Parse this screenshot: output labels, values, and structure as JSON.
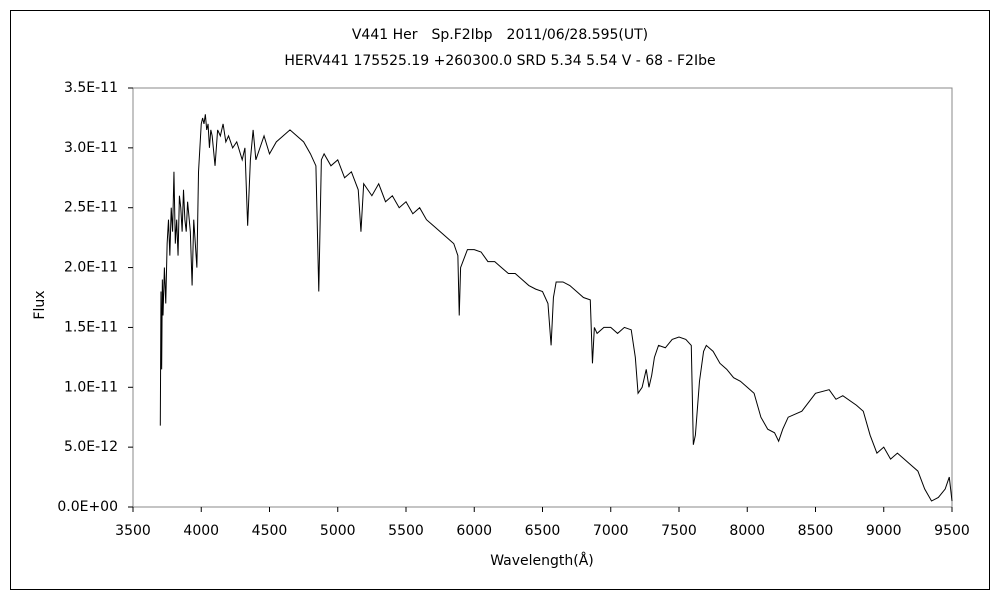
{
  "chart_data": {
    "type": "line",
    "title": "V441 Her　Sp.F2Ibp　2011/06/28.595(UT)",
    "subtitle": "HERV441 175525.19 +260300.0 SRD 5.34 5.54 V - 68 - F2Ibe",
    "x_label": "Wavelength(Å)",
    "y_label": "Flux",
    "xlim": [
      3500,
      9500
    ],
    "xticks": [
      3500,
      4000,
      4500,
      5000,
      5500,
      6000,
      6500,
      7000,
      7500,
      8000,
      8500,
      9000,
      9500
    ],
    "ylim": [
      0,
      3.5e-11
    ],
    "yticks": [
      {
        "value": 0,
        "label": "0.0E+00"
      },
      {
        "value": 5e-12,
        "label": "5.0E-12"
      },
      {
        "value": 1e-11,
        "label": "1.0E-11"
      },
      {
        "value": 1.5e-11,
        "label": "1.5E-11"
      },
      {
        "value": 2e-11,
        "label": "2.0E-11"
      },
      {
        "value": 2.5e-11,
        "label": "2.5E-11"
      },
      {
        "value": 3e-11,
        "label": "3.0E-11"
      },
      {
        "value": 3.5e-11,
        "label": "3.5E-11"
      }
    ],
    "grid": false,
    "x": [
      3700,
      3705,
      3710,
      3715,
      3720,
      3730,
      3740,
      3750,
      3760,
      3770,
      3780,
      3790,
      3800,
      3810,
      3820,
      3830,
      3840,
      3850,
      3860,
      3870,
      3880,
      3890,
      3900,
      3920,
      3933,
      3945,
      3968,
      3980,
      3990,
      4000,
      4010,
      4020,
      4030,
      4040,
      4050,
      4060,
      4070,
      4080,
      4101,
      4120,
      4140,
      4160,
      4180,
      4200,
      4230,
      4260,
      4300,
      4320,
      4340,
      4360,
      4380,
      4400,
      4430,
      4460,
      4500,
      4550,
      4600,
      4650,
      4700,
      4750,
      4800,
      4840,
      4861,
      4880,
      4900,
      4950,
      5000,
      5050,
      5100,
      5150,
      5170,
      5190,
      5250,
      5300,
      5350,
      5400,
      5450,
      5500,
      5550,
      5600,
      5650,
      5700,
      5750,
      5800,
      5850,
      5880,
      5890,
      5900,
      5950,
      6000,
      6050,
      6100,
      6150,
      6200,
      6250,
      6300,
      6350,
      6400,
      6450,
      6500,
      6540,
      6563,
      6580,
      6600,
      6650,
      6700,
      6750,
      6800,
      6850,
      6866,
      6880,
      6900,
      6950,
      7000,
      7050,
      7100,
      7150,
      7180,
      7200,
      7230,
      7260,
      7280,
      7300,
      7320,
      7350,
      7400,
      7450,
      7500,
      7550,
      7590,
      7605,
      7620,
      7650,
      7680,
      7700,
      7750,
      7800,
      7850,
      7900,
      7950,
      8000,
      8050,
      8100,
      8150,
      8200,
      8230,
      8260,
      8300,
      8400,
      8500,
      8600,
      8650,
      8700,
      8800,
      8850,
      8900,
      8950,
      9000,
      9050,
      9100,
      9150,
      9200,
      9250,
      9300,
      9350,
      9400,
      9450,
      9480,
      9500
    ],
    "series": [
      {
        "name": "Flux",
        "color": "#000000",
        "values": [
          6.8e-12,
          1.8e-11,
          1.15e-11,
          1.9e-11,
          1.6e-11,
          2e-11,
          1.7e-11,
          2.2e-11,
          2.4e-11,
          2.1e-11,
          2.5e-11,
          2.3e-11,
          2.8e-11,
          2.2e-11,
          2.4e-11,
          2.1e-11,
          2.6e-11,
          2.5e-11,
          2.3e-11,
          2.65e-11,
          2.4e-11,
          2.3e-11,
          2.55e-11,
          2.3e-11,
          1.85e-11,
          2.4e-11,
          2e-11,
          2.8e-11,
          3e-11,
          3.2e-11,
          3.25e-11,
          3.2e-11,
          3.28e-11,
          3.15e-11,
          3.2e-11,
          3e-11,
          3.15e-11,
          3.1e-11,
          2.85e-11,
          3.15e-11,
          3.1e-11,
          3.2e-11,
          3.05e-11,
          3.1e-11,
          3e-11,
          3.05e-11,
          2.9e-11,
          3e-11,
          2.35e-11,
          2.9e-11,
          3.15e-11,
          2.9e-11,
          3e-11,
          3.1e-11,
          2.95e-11,
          3.05e-11,
          3.1e-11,
          3.15e-11,
          3.1e-11,
          3.05e-11,
          2.95e-11,
          2.85e-11,
          1.8e-11,
          2.9e-11,
          2.95e-11,
          2.85e-11,
          2.9e-11,
          2.75e-11,
          2.8e-11,
          2.65e-11,
          2.3e-11,
          2.7e-11,
          2.6e-11,
          2.7e-11,
          2.55e-11,
          2.6e-11,
          2.5e-11,
          2.55e-11,
          2.45e-11,
          2.5e-11,
          2.4e-11,
          2.35e-11,
          2.3e-11,
          2.25e-11,
          2.2e-11,
          2.1e-11,
          1.6e-11,
          2e-11,
          2.15e-11,
          2.15e-11,
          2.13e-11,
          2.05e-11,
          2.05e-11,
          2e-11,
          1.95e-11,
          1.95e-11,
          1.9e-11,
          1.85e-11,
          1.82e-11,
          1.8e-11,
          1.7e-11,
          1.35e-11,
          1.75e-11,
          1.88e-11,
          1.88e-11,
          1.85e-11,
          1.8e-11,
          1.75e-11,
          1.73e-11,
          1.2e-11,
          1.5e-11,
          1.45e-11,
          1.5e-11,
          1.5e-11,
          1.45e-11,
          1.5e-11,
          1.48e-11,
          1.25e-11,
          9.5e-12,
          1e-11,
          1.15e-11,
          1e-11,
          1.1e-11,
          1.25e-11,
          1.35e-11,
          1.33e-11,
          1.4e-11,
          1.42e-11,
          1.4e-11,
          1.35e-11,
          5.2e-12,
          6e-12,
          1.05e-11,
          1.3e-11,
          1.35e-11,
          1.3e-11,
          1.2e-11,
          1.15e-11,
          1.08e-11,
          1.05e-11,
          1e-11,
          9.5e-12,
          7.5e-12,
          6.5e-12,
          6.2e-12,
          5.5e-12,
          6.5e-12,
          7.5e-12,
          8e-12,
          9.5e-12,
          9.8e-12,
          9e-12,
          9.3e-12,
          8.5e-12,
          8e-12,
          6e-12,
          4.5e-12,
          5e-12,
          4e-12,
          4.5e-12,
          4e-12,
          3.5e-12,
          3e-12,
          1.5e-12,
          5e-13,
          8e-13,
          1.5e-12,
          2.5e-12,
          5e-13
        ]
      }
    ]
  }
}
